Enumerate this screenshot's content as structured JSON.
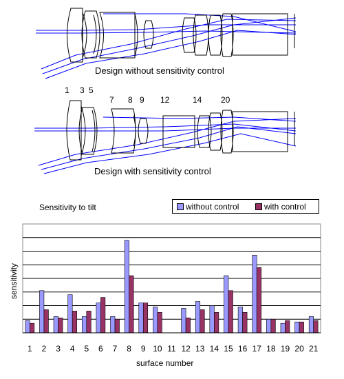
{
  "diagrams": {
    "top_caption": "Design without sensitivity control",
    "bottom_caption": "Design with sensitivity control",
    "surface_numbers": [
      "1",
      "3",
      "5",
      "7",
      "8",
      "9",
      "12",
      "14",
      "20"
    ]
  },
  "chart_data": {
    "type": "bar",
    "title": "Sensitivity to tilt",
    "xlabel": "surface number",
    "ylabel": "sensitivity",
    "categories": [
      "1",
      "2",
      "3",
      "4",
      "5",
      "6",
      "7",
      "8",
      "9",
      "10",
      "11",
      "12",
      "13",
      "14",
      "15",
      "16",
      "17",
      "18",
      "19",
      "20",
      "21"
    ],
    "series": [
      {
        "name": "without control",
        "color": "#9999ff",
        "values": [
          0.9,
          3.1,
          1.2,
          2.8,
          1.2,
          2.2,
          1.2,
          6.8,
          2.2,
          1.9,
          0,
          1.8,
          2.3,
          2.0,
          4.2,
          1.9,
          5.7,
          1.0,
          0.7,
          0.8,
          1.2
        ]
      },
      {
        "name": "with control",
        "color": "#993366",
        "values": [
          0.7,
          1.7,
          1.1,
          1.6,
          1.6,
          2.6,
          1.0,
          4.2,
          2.2,
          1.5,
          0,
          1.1,
          1.7,
          1.5,
          3.1,
          1.5,
          4.8,
          1.0,
          0.9,
          0.8,
          0.9
        ]
      }
    ],
    "ylim": [
      0,
      8
    ],
    "grid": true,
    "legend_position": "top-right"
  }
}
